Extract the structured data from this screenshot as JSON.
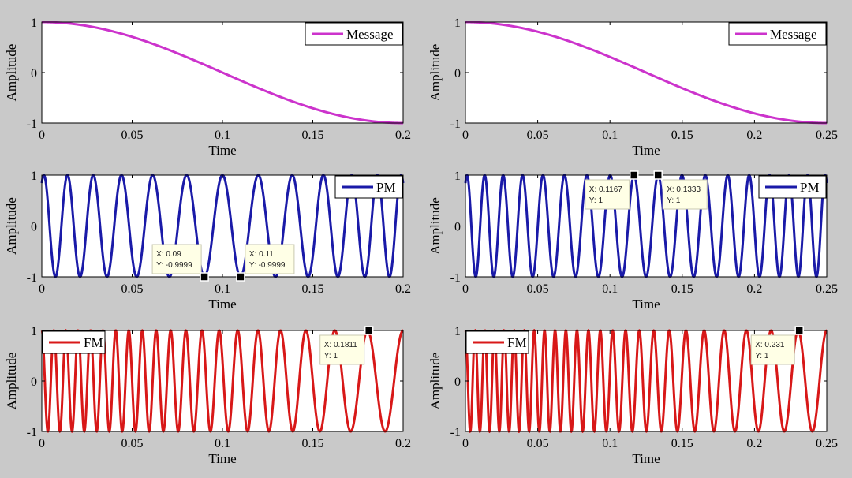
{
  "chart_data": [
    {
      "type": "line",
      "id": "msg-left",
      "legend": "Message",
      "legend_position": "top-right",
      "color": "#cc33cc",
      "xlabel": "Time",
      "ylabel": "Amplitude",
      "xlim": [
        0,
        0.2
      ],
      "ylim": [
        -1,
        1
      ],
      "xticks": [
        "0",
        "0.05",
        "0.1",
        "0.15",
        "0.2"
      ],
      "xtick_values": [
        0,
        0.05,
        0.1,
        0.15,
        0.2
      ],
      "yticks": [
        "1",
        "0",
        "-1"
      ],
      "ytick_values": [
        1,
        0,
        -1
      ],
      "signal": {
        "kind": "message",
        "message_hz": 2.5
      },
      "datatips": []
    },
    {
      "type": "line",
      "id": "msg-right",
      "legend": "Message",
      "legend_position": "top-right",
      "color": "#cc33cc",
      "xlabel": "Time",
      "ylabel": "Amplitude",
      "xlim": [
        0,
        0.25
      ],
      "ylim": [
        -1,
        1
      ],
      "xticks": [
        "0",
        "0.05",
        "0.1",
        "0.15",
        "0.2",
        "0.25"
      ],
      "xtick_values": [
        0,
        0.05,
        0.1,
        0.15,
        0.2,
        0.25
      ],
      "yticks": [
        "1",
        "0",
        "-1"
      ],
      "ytick_values": [
        1,
        0,
        -1
      ],
      "signal": {
        "kind": "message",
        "message_hz": 2
      },
      "datatips": []
    },
    {
      "type": "line",
      "id": "pm-left",
      "legend": "PM",
      "legend_position": "top-right",
      "color": "#1a1aa8",
      "xlabel": "Time",
      "ylabel": "Amplitude",
      "xlim": [
        0,
        0.2
      ],
      "ylim": [
        -1,
        1
      ],
      "xticks": [
        "0",
        "0.05",
        "0.1",
        "0.15",
        "0.2"
      ],
      "xtick_values": [
        0,
        0.05,
        0.1,
        0.15,
        0.2
      ],
      "yticks": [
        "1",
        "0",
        "-1"
      ],
      "ytick_values": [
        1,
        0,
        -1
      ],
      "signal": {
        "kind": "pm",
        "message_hz": 2.5,
        "carrier_hz": 80,
        "kp": 12
      },
      "datatips": [
        {
          "x": 0.09,
          "y": -0.9999,
          "xtext": "X: 0.09",
          "ytext": "Y: -0.9999",
          "side": "left"
        },
        {
          "x": 0.11,
          "y": -0.9999,
          "xtext": "X: 0.11",
          "ytext": "Y: -0.9999",
          "side": "right"
        }
      ]
    },
    {
      "type": "line",
      "id": "pm-right",
      "legend": "PM",
      "legend_position": "top-right",
      "color": "#1a1aa8",
      "xlabel": "Time",
      "ylabel": "Amplitude",
      "xlim": [
        0,
        0.25
      ],
      "ylim": [
        -1,
        1
      ],
      "xticks": [
        "0",
        "0.05",
        "0.1",
        "0.15",
        "0.2",
        "0.25"
      ],
      "xtick_values": [
        0,
        0.05,
        0.1,
        0.15,
        0.2,
        0.25
      ],
      "yticks": [
        "1",
        "0",
        "-1"
      ],
      "ytick_values": [
        1,
        0,
        -1
      ],
      "signal": {
        "kind": "pm",
        "message_hz": 2,
        "carrier_hz": 84,
        "kp": 12
      },
      "datatips": [
        {
          "x": 0.1167,
          "y": 1,
          "xtext": "X: 0.1167",
          "ytext": "Y: 1",
          "side": "left"
        },
        {
          "x": 0.1333,
          "y": 1,
          "xtext": "X: 0.1333",
          "ytext": "Y: 1",
          "side": "right"
        }
      ]
    },
    {
      "type": "line",
      "id": "fm-left",
      "legend": "FM",
      "legend_position": "top-left",
      "color": "#d81818",
      "xlabel": "Time",
      "ylabel": "Amplitude",
      "xlim": [
        0,
        0.2
      ],
      "ylim": [
        -1,
        1
      ],
      "xticks": [
        "0",
        "0.05",
        "0.1",
        "0.15",
        "0.2"
      ],
      "xtick_values": [
        0,
        0.05,
        0.1,
        0.15,
        0.2
      ],
      "yticks": [
        "1",
        "0",
        "-1"
      ],
      "ytick_values": [
        1,
        0,
        -1
      ],
      "signal": {
        "kind": "fm",
        "message_hz": 2.5,
        "carrier_hz": 100,
        "deviation_hz": 50
      },
      "datatips": [
        {
          "x": 0.1811,
          "y": 1,
          "xtext": "X: 0.1811",
          "ytext": "Y: 1",
          "side": "left"
        }
      ]
    },
    {
      "type": "line",
      "id": "fm-right",
      "legend": "FM",
      "legend_position": "top-left",
      "color": "#d81818",
      "xlabel": "Time",
      "ylabel": "Amplitude",
      "xlim": [
        0,
        0.25
      ],
      "ylim": [
        -1,
        1
      ],
      "xticks": [
        "0",
        "0.05",
        "0.1",
        "0.15",
        "0.2",
        "0.25"
      ],
      "xtick_values": [
        0,
        0.05,
        0.1,
        0.15,
        0.2,
        0.25
      ],
      "yticks": [
        "1",
        "0",
        "-1"
      ],
      "ytick_values": [
        1,
        0,
        -1
      ],
      "signal": {
        "kind": "fm",
        "message_hz": 2,
        "carrier_hz": 100,
        "deviation_hz": 50
      },
      "datatips": [
        {
          "x": 0.231,
          "y": 1,
          "xtext": "X: 0.231",
          "ytext": "Y: 1",
          "side": "left"
        }
      ]
    }
  ]
}
